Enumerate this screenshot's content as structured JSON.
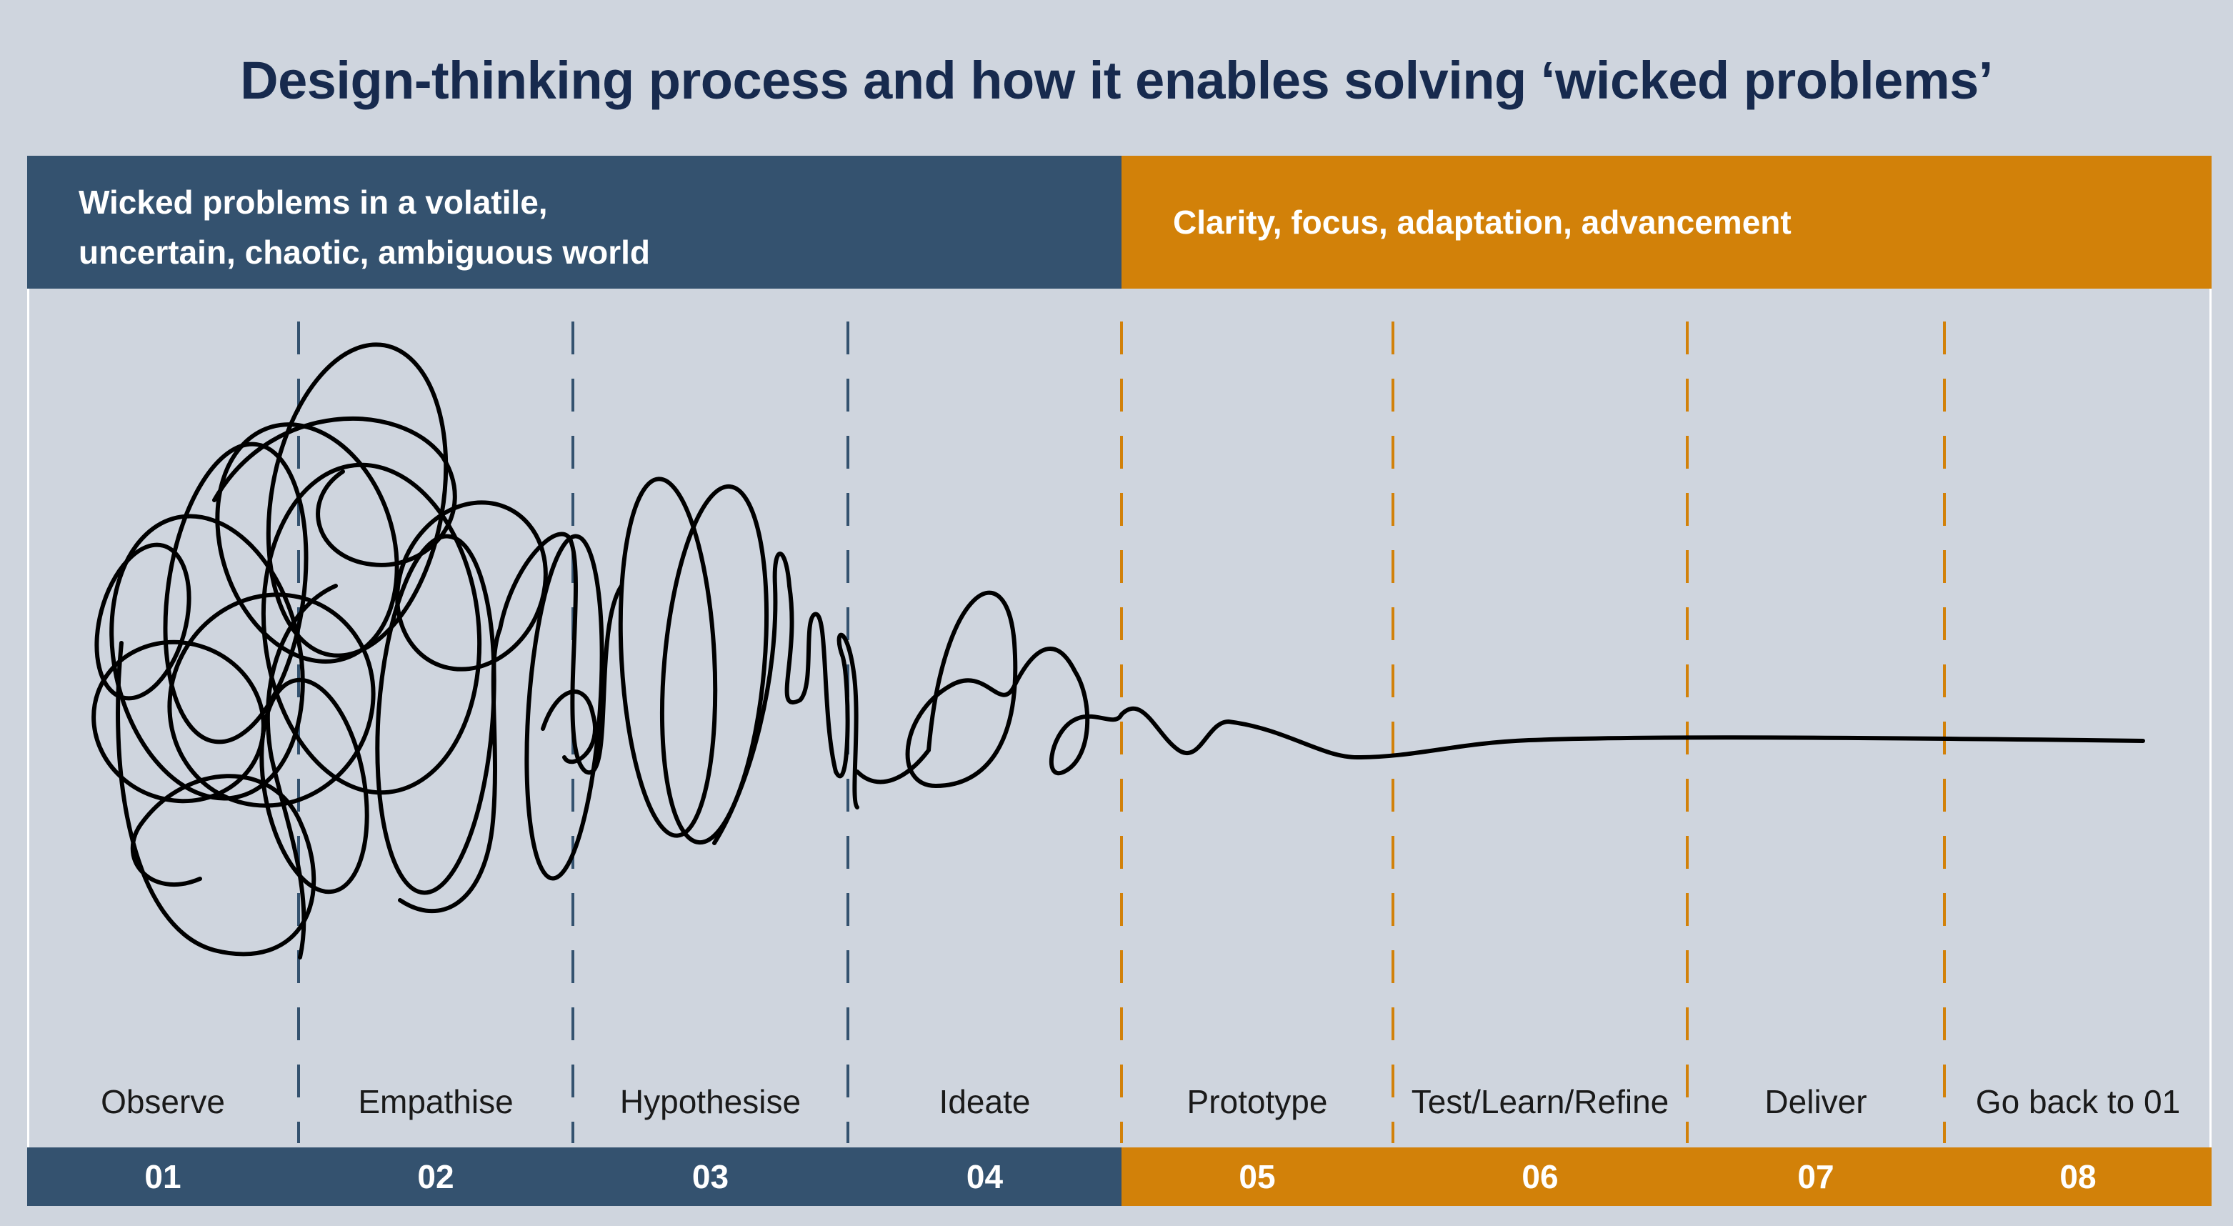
{
  "title": "Design-thinking process and how it enables solving ‘wicked problems’",
  "left_header": {
    "line1": "Wicked problems in a volatile,",
    "line2": "uncertain, chaotic, ambiguous world",
    "color": "#34526f"
  },
  "right_header": {
    "text": "Clarity, focus, adaptation, advancement",
    "color": "#d28109"
  },
  "stages": [
    {
      "number": "01",
      "label": "Observe"
    },
    {
      "number": "02",
      "label": "Empathise"
    },
    {
      "number": "03",
      "label": "Hypothesise"
    },
    {
      "number": "04",
      "label": "Ideate"
    },
    {
      "number": "05",
      "label": "Prototype"
    },
    {
      "number": "06",
      "label": "Test/Learn/Refine"
    },
    {
      "number": "07",
      "label": "Deliver"
    },
    {
      "number": "08",
      "label": "Go back to 01"
    }
  ],
  "colors": {
    "background": "#cfd5de",
    "title": "#172a4e",
    "blue_divider": "#34526f",
    "orange_divider": "#d28109",
    "squiggle": "#000000"
  }
}
